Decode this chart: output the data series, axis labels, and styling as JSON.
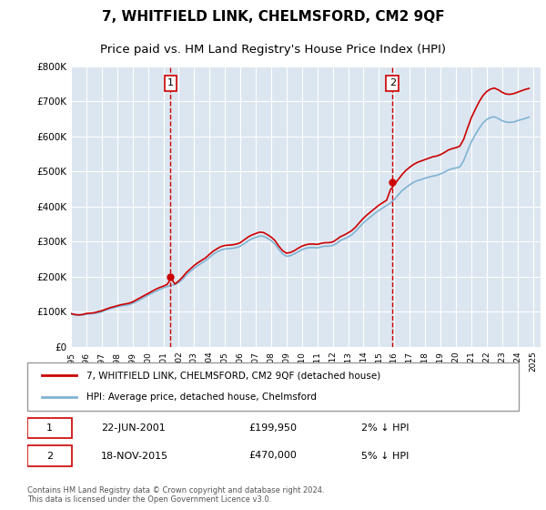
{
  "title": "7, WHITFIELD LINK, CHELMSFORD, CM2 9QF",
  "subtitle": "Price paid vs. HM Land Registry's House Price Index (HPI)",
  "title_fontsize": 11,
  "subtitle_fontsize": 9.5,
  "background_color": "#ffffff",
  "plot_bg_color": "#dce6f1",
  "grid_color": "#ffffff",
  "ylim": [
    0,
    800000
  ],
  "yticks": [
    0,
    100000,
    200000,
    300000,
    400000,
    500000,
    600000,
    700000,
    800000
  ],
  "ytick_labels": [
    "£0",
    "£100K",
    "£200K",
    "£300K",
    "£400K",
    "£500K",
    "£600K",
    "£700K",
    "£800K"
  ],
  "xlim_start": 1995.0,
  "xlim_end": 2025.5,
  "xtick_years": [
    1995,
    1996,
    1997,
    1998,
    1999,
    2000,
    2001,
    2002,
    2003,
    2004,
    2005,
    2006,
    2007,
    2008,
    2009,
    2010,
    2011,
    2012,
    2013,
    2014,
    2015,
    2016,
    2017,
    2018,
    2019,
    2020,
    2021,
    2022,
    2023,
    2024,
    2025
  ],
  "sale1_year": 2001.47,
  "sale1_price": 199950,
  "sale1_label": "1",
  "sale2_year": 2015.88,
  "sale2_price": 470000,
  "sale2_label": "2",
  "hpi_line_color": "#7fb3d3",
  "price_line_color": "#cc0000",
  "sale_marker_color": "#cc0000",
  "dashed_line_color": "#cc0000",
  "legend_label_price": "7, WHITFIELD LINK, CHELMSFORD, CM2 9QF (detached house)",
  "legend_label_hpi": "HPI: Average price, detached house, Chelmsford",
  "annotation1_date": "22-JUN-2001",
  "annotation1_price": "£199,950",
  "annotation1_hpi": "2% ↓ HPI",
  "annotation2_date": "18-NOV-2015",
  "annotation2_price": "£470,000",
  "annotation2_hpi": "5% ↓ HPI",
  "footer": "Contains HM Land Registry data © Crown copyright and database right 2024.\nThis data is licensed under the Open Government Licence v3.0.",
  "hpi_years": [
    1995.0,
    1995.25,
    1995.5,
    1995.75,
    1996.0,
    1996.25,
    1996.5,
    1996.75,
    1997.0,
    1997.25,
    1997.5,
    1997.75,
    1998.0,
    1998.25,
    1998.5,
    1998.75,
    1999.0,
    1999.25,
    1999.5,
    1999.75,
    2000.0,
    2000.25,
    2000.5,
    2000.75,
    2001.0,
    2001.25,
    2001.5,
    2001.75,
    2002.0,
    2002.25,
    2002.5,
    2002.75,
    2003.0,
    2003.25,
    2003.5,
    2003.75,
    2004.0,
    2004.25,
    2004.5,
    2004.75,
    2005.0,
    2005.25,
    2005.5,
    2005.75,
    2006.0,
    2006.25,
    2006.5,
    2006.75,
    2007.0,
    2007.25,
    2007.5,
    2007.75,
    2008.0,
    2008.25,
    2008.5,
    2008.75,
    2009.0,
    2009.25,
    2009.5,
    2009.75,
    2010.0,
    2010.25,
    2010.5,
    2010.75,
    2011.0,
    2011.25,
    2011.5,
    2011.75,
    2012.0,
    2012.25,
    2012.5,
    2012.75,
    2013.0,
    2013.25,
    2013.5,
    2013.75,
    2014.0,
    2014.25,
    2014.5,
    2014.75,
    2015.0,
    2015.25,
    2015.5,
    2015.75,
    2016.0,
    2016.25,
    2016.5,
    2016.75,
    2017.0,
    2017.25,
    2017.5,
    2017.75,
    2018.0,
    2018.25,
    2018.5,
    2018.75,
    2019.0,
    2019.25,
    2019.5,
    2019.75,
    2020.0,
    2020.25,
    2020.5,
    2020.75,
    2021.0,
    2021.25,
    2021.5,
    2021.75,
    2022.0,
    2022.25,
    2022.5,
    2022.75,
    2023.0,
    2023.25,
    2023.5,
    2023.75,
    2024.0,
    2024.25,
    2024.5,
    2024.75
  ],
  "hpi_values": [
    93000,
    91000,
    90000,
    91000,
    93000,
    94000,
    95000,
    97000,
    100000,
    104000,
    108000,
    111000,
    114000,
    117000,
    118000,
    120000,
    124000,
    129000,
    135000,
    141000,
    147000,
    153000,
    158000,
    163000,
    168000,
    172000,
    175000,
    178000,
    183000,
    193000,
    205000,
    215000,
    224000,
    232000,
    239000,
    246000,
    255000,
    264000,
    271000,
    276000,
    279000,
    280000,
    281000,
    283000,
    287000,
    294000,
    302000,
    308000,
    312000,
    316000,
    315000,
    310000,
    303000,
    293000,
    278000,
    265000,
    258000,
    260000,
    265000,
    271000,
    277000,
    281000,
    283000,
    283000,
    282000,
    285000,
    287000,
    287000,
    289000,
    295000,
    303000,
    308000,
    313000,
    320000,
    330000,
    342000,
    354000,
    363000,
    372000,
    381000,
    389000,
    396000,
    403000,
    410000,
    420000,
    433000,
    445000,
    454000,
    462000,
    469000,
    474000,
    477000,
    481000,
    484000,
    487000,
    489000,
    493000,
    498000,
    504000,
    508000,
    510000,
    513000,
    530000,
    558000,
    584000,
    604000,
    622000,
    638000,
    648000,
    654000,
    656000,
    651000,
    645000,
    641000,
    640000,
    641000,
    645000,
    648000,
    651000,
    655000
  ],
  "price_years": [
    1995.0,
    1995.25,
    1995.5,
    1995.75,
    1996.0,
    1996.25,
    1996.5,
    1996.75,
    1997.0,
    1997.25,
    1997.5,
    1997.75,
    1998.0,
    1998.25,
    1998.5,
    1998.75,
    1999.0,
    1999.25,
    1999.5,
    1999.75,
    2000.0,
    2000.25,
    2000.5,
    2000.75,
    2001.0,
    2001.25,
    2001.5,
    2001.75,
    2002.0,
    2002.25,
    2002.5,
    2002.75,
    2003.0,
    2003.25,
    2003.5,
    2003.75,
    2004.0,
    2004.25,
    2004.5,
    2004.75,
    2005.0,
    2005.25,
    2005.5,
    2005.75,
    2006.0,
    2006.25,
    2006.5,
    2006.75,
    2007.0,
    2007.25,
    2007.5,
    2007.75,
    2008.0,
    2008.25,
    2008.5,
    2008.75,
    2009.0,
    2009.25,
    2009.5,
    2009.75,
    2010.0,
    2010.25,
    2010.5,
    2010.75,
    2011.0,
    2011.25,
    2011.5,
    2011.75,
    2012.0,
    2012.25,
    2012.5,
    2012.75,
    2013.0,
    2013.25,
    2013.5,
    2013.75,
    2014.0,
    2014.25,
    2014.5,
    2014.75,
    2015.0,
    2015.25,
    2015.5,
    2015.75,
    2016.0,
    2016.25,
    2016.5,
    2016.75,
    2017.0,
    2017.25,
    2017.5,
    2017.75,
    2018.0,
    2018.25,
    2018.5,
    2018.75,
    2019.0,
    2019.25,
    2019.5,
    2019.75,
    2020.0,
    2020.25,
    2020.5,
    2020.75,
    2021.0,
    2021.25,
    2021.5,
    2021.75,
    2022.0,
    2022.25,
    2022.5,
    2022.75,
    2023.0,
    2023.25,
    2023.5,
    2023.75,
    2024.0,
    2024.25,
    2024.5,
    2024.75
  ],
  "price_values": [
    95000,
    92000,
    91000,
    92000,
    95000,
    96000,
    97000,
    100000,
    103000,
    107000,
    111000,
    114000,
    117000,
    120000,
    122000,
    124000,
    128000,
    134000,
    140000,
    146000,
    152000,
    158000,
    164000,
    169000,
    173000,
    178000,
    196000,
    179000,
    188000,
    199000,
    212000,
    222000,
    232000,
    240000,
    247000,
    254000,
    264000,
    273000,
    280000,
    286000,
    289000,
    290000,
    291000,
    293000,
    297000,
    305000,
    313000,
    319000,
    323000,
    327000,
    326000,
    320000,
    313000,
    303000,
    287000,
    274000,
    267000,
    269000,
    274000,
    281000,
    287000,
    291000,
    293000,
    293000,
    292000,
    295000,
    297000,
    297000,
    299000,
    306000,
    314000,
    319000,
    325000,
    332000,
    342000,
    355000,
    367000,
    377000,
    386000,
    395000,
    404000,
    411000,
    418000,
    448000,
    462000,
    477000,
    491000,
    503000,
    512000,
    520000,
    526000,
    530000,
    534000,
    538000,
    542000,
    544000,
    548000,
    554000,
    561000,
    565000,
    568000,
    572000,
    591000,
    623000,
    653000,
    676000,
    698000,
    716000,
    728000,
    735000,
    738000,
    733000,
    726000,
    721000,
    720000,
    722000,
    726000,
    730000,
    734000,
    737000
  ]
}
